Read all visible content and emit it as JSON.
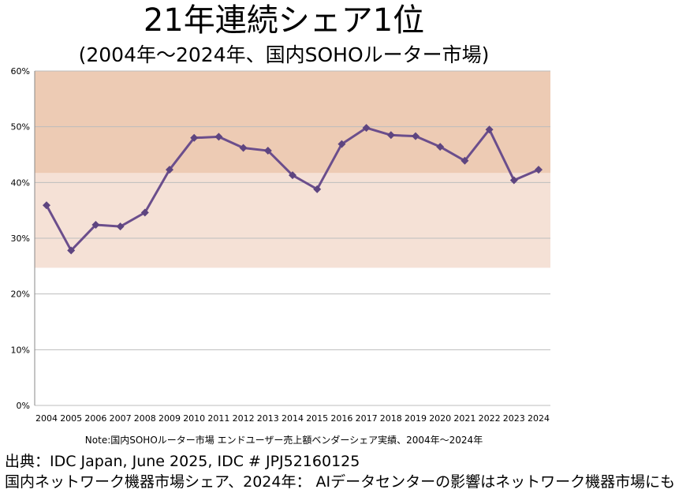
{
  "title": "21年連続シェア1位",
  "subtitle": "(2004年～2024年、国内SOHOルーター市場)",
  "note": "Note:国内SOHOルーター市場 エンドユーザー売上額ベンダーシェア実績、2004年～2024年",
  "source": "出典：IDC Japan, June 2025, IDC # JPJ52160125",
  "caption": "国内ネットワーク機器市場シェア、2024年： AIデータセンターの影響はネットワーク機器市場にも",
  "chart_data": {
    "type": "line",
    "categories": [
      "2004",
      "2005",
      "2006",
      "2007",
      "2008",
      "2009",
      "2010",
      "2011",
      "2012",
      "2013",
      "2014",
      "2015",
      "2016",
      "2017",
      "2018",
      "2019",
      "2020",
      "2021",
      "2022",
      "2023",
      "2024"
    ],
    "series": [
      {
        "values": [
          35.9,
          27.8,
          32.4,
          32.1,
          34.6,
          42.3,
          48.0,
          48.2,
          46.2,
          45.7,
          41.3,
          38.8,
          46.9,
          49.8,
          48.5,
          48.3,
          46.4,
          43.9,
          49.5,
          40.4,
          42.3
        ],
        "color": "#6B4E8C"
      }
    ],
    "ylim": [
      0,
      60
    ],
    "yticks": [
      "0%",
      "10%",
      "20%",
      "30%",
      "40%",
      "50%",
      "60%"
    ],
    "bands": [
      {
        "from": 24.7,
        "to": 41.7,
        "color": "#F5E1D6"
      },
      {
        "from": 41.7,
        "to": 60,
        "color": "#EDCBB4"
      }
    ],
    "grid": true
  }
}
